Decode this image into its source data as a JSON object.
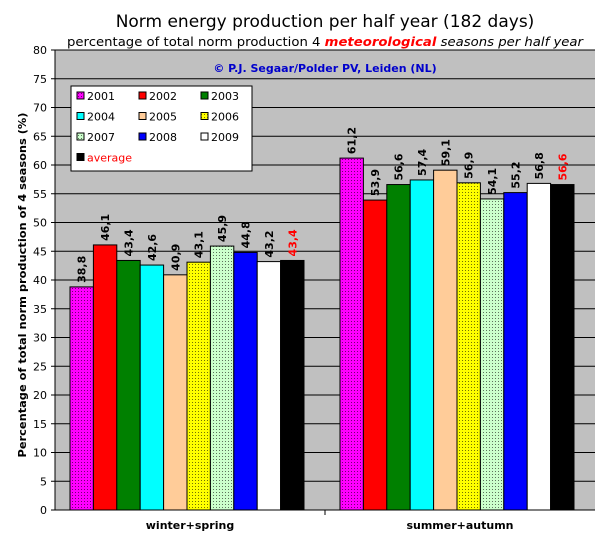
{
  "chart_data": {
    "type": "bar",
    "title": "Norm energy production per half year (182 days)",
    "subtitle": {
      "prefix": "percentage of total norm production 4 ",
      "emphasis": "meteorological",
      "suffix": " seasons  per half year"
    },
    "annotation": "© P.J. Segaar/Polder PV, Leiden (NL)",
    "ylabel": "Percentage of total norm production of 4 seasons (%)",
    "xlabel": "",
    "ylim": [
      0,
      80
    ],
    "ytick_step": 5,
    "grid": true,
    "legend_position": "top-left",
    "categories": [
      "winter+spring",
      "summer+autumn"
    ],
    "series": [
      {
        "name": "2001",
        "color": "#ff00ff",
        "pattern": "dots",
        "values": [
          38.8,
          61.2
        ],
        "labels": [
          "38,8",
          "61,2"
        ]
      },
      {
        "name": "2002",
        "color": "#ff0000",
        "pattern": "none",
        "values": [
          46.1,
          53.9
        ],
        "labels": [
          "46,1",
          "53,9"
        ]
      },
      {
        "name": "2003",
        "color": "#008000",
        "pattern": "none",
        "values": [
          43.4,
          56.6
        ],
        "labels": [
          "43,4",
          "56,6"
        ]
      },
      {
        "name": "2004",
        "color": "#00ffff",
        "pattern": "none",
        "values": [
          42.6,
          57.4
        ],
        "labels": [
          "42,6",
          "57,4"
        ]
      },
      {
        "name": "2005",
        "color": "#ffcc99",
        "pattern": "none",
        "values": [
          40.9,
          59.1
        ],
        "labels": [
          "40,9",
          "59,1"
        ]
      },
      {
        "name": "2006",
        "color": "#ffff00",
        "pattern": "dots",
        "values": [
          43.1,
          56.9
        ],
        "labels": [
          "43,1",
          "56,9"
        ]
      },
      {
        "name": "2007",
        "color": "#ccffcc",
        "pattern": "dots",
        "values": [
          45.9,
          54.1
        ],
        "labels": [
          "45,9",
          "54,1"
        ]
      },
      {
        "name": "2008",
        "color": "#0000ff",
        "pattern": "none",
        "values": [
          44.8,
          55.2
        ],
        "labels": [
          "44,8",
          "55,2"
        ]
      },
      {
        "name": "2009",
        "color": "#ffffff",
        "pattern": "none",
        "values": [
          43.2,
          56.8
        ],
        "labels": [
          "43,2",
          "56,8"
        ]
      },
      {
        "name": "average",
        "color": "#000000",
        "pattern": "none",
        "values": [
          43.4,
          56.6
        ],
        "labels": [
          "43,4",
          "56,6"
        ],
        "label_color": "#ff0000",
        "legend_text_color": "#ff0000"
      }
    ],
    "colors": {
      "plot_background": "#c0c0c0",
      "title_emphasis": "#ff0000",
      "annotation": "#0000cc"
    }
  }
}
